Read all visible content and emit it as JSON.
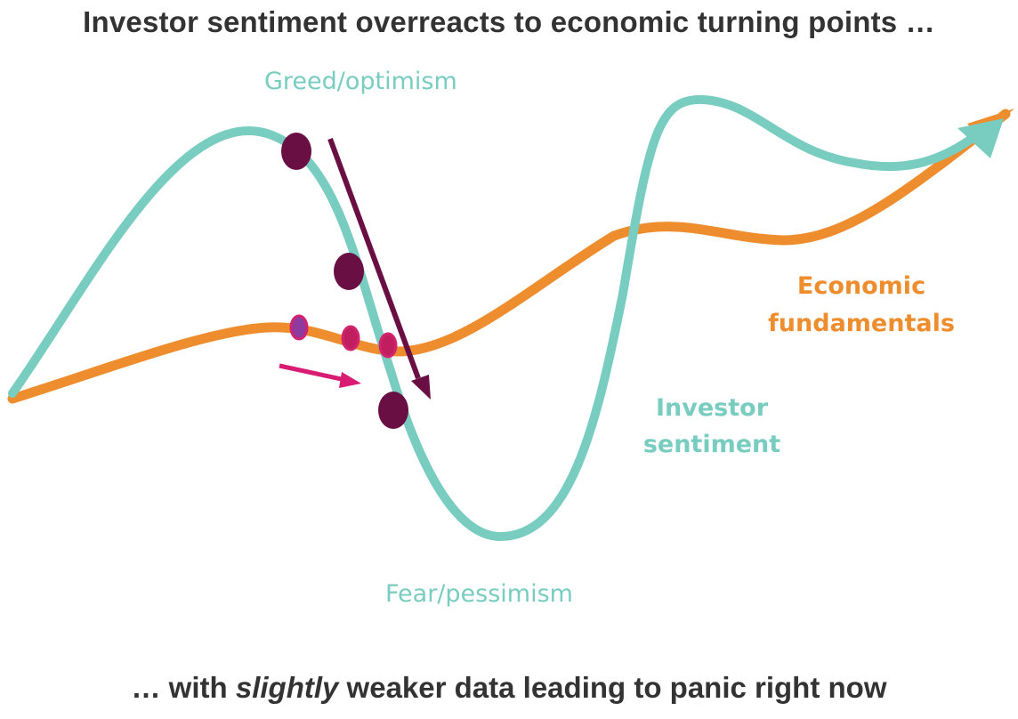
{
  "title": "Investor sentiment overreacts to economic turning points …",
  "footer": {
    "prefix": "… with ",
    "emphasis": "slightly",
    "suffix": " weaker data leading to panic right now"
  },
  "labels": {
    "greed": "Greed/optimism",
    "fear": "Fear/pessimism",
    "investor_line1": "Investor",
    "investor_line2": "sentiment",
    "economic_line1": "Economic",
    "economic_line2": "fundamentals"
  },
  "colors": {
    "sentiment": "#78ccc0",
    "fundamentals": "#ee8d2e",
    "markers_dark": "#6a0f43",
    "markers_pink": "#d2246e",
    "arrow_pink": "#d81b73",
    "text": "#333333"
  }
}
